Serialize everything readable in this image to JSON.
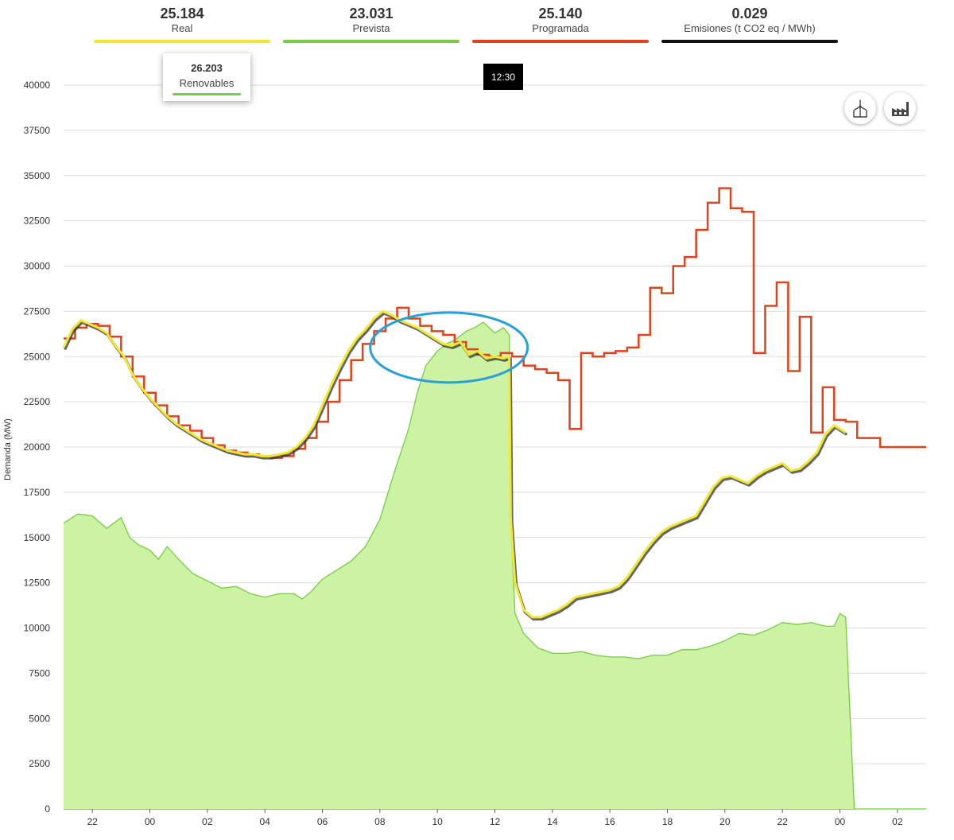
{
  "summary": {
    "real": {
      "value": "25.184",
      "label": "Real",
      "color": "#f2e832"
    },
    "prevista": {
      "value": "23.031",
      "label": "Prevista",
      "color": "#77cc44"
    },
    "programada": {
      "value": "25.140",
      "label": "Programada",
      "color": "#e0431b"
    },
    "emisiones": {
      "value": "0.029",
      "label": "Emisiones (t CO2 eq / MWh)",
      "color": "#111111"
    }
  },
  "tooltip": {
    "value": "26.203",
    "label": "Renovables",
    "color": "#77cc44"
  },
  "cursor": {
    "time_label": "12:30",
    "hour": 12.5
  },
  "icons": {
    "wind": "wind-turbine-icon",
    "factory": "factory-icon"
  },
  "chart_data": {
    "type": "line",
    "ylabel": "Demanda (MW)",
    "ylim": [
      0,
      40000
    ],
    "yticks": [
      0,
      2500,
      5000,
      7500,
      10000,
      12500,
      15000,
      17500,
      20000,
      22500,
      25000,
      27500,
      30000,
      32500,
      35000,
      37500,
      40000
    ],
    "xlim": [
      21,
      51
    ],
    "xticks": [
      {
        "label": "22",
        "hour": 22
      },
      {
        "label": "00",
        "hour": 24
      },
      {
        "label": "02",
        "hour": 26
      },
      {
        "label": "04",
        "hour": 28
      },
      {
        "label": "06",
        "hour": 30
      },
      {
        "label": "08",
        "hour": 32
      },
      {
        "label": "10",
        "hour": 34
      },
      {
        "label": "12",
        "hour": 36
      },
      {
        "label": "14",
        "hour": 38
      },
      {
        "label": "16",
        "hour": 40
      },
      {
        "label": "18",
        "hour": 42
      },
      {
        "label": "20",
        "hour": 44
      },
      {
        "label": "22",
        "hour": 46
      },
      {
        "label": "00",
        "hour": 48
      },
      {
        "label": "02",
        "hour": 50
      }
    ],
    "grid": true,
    "annotation": {
      "type": "ellipse",
      "center_hour": 34.4,
      "center_value": 25500,
      "color": "#2b9fd9"
    },
    "series": [
      {
        "name": "Renovables",
        "type": "area",
        "color": "#77cc44",
        "fill": "#ccf2a4",
        "x": [
          21,
          21.5,
          22,
          22.5,
          23,
          23.3,
          23.6,
          24,
          24.3,
          24.6,
          25,
          25.5,
          26,
          26.5,
          27,
          27.5,
          28,
          28.5,
          29,
          29.3,
          29.6,
          30,
          30.5,
          31,
          31.5,
          32,
          32.5,
          33,
          33.3,
          33.6,
          34,
          34.3,
          34.6,
          35,
          35.3,
          35.6,
          36,
          36.3,
          36.5,
          36.55,
          36.7,
          37,
          37.5,
          38,
          38.5,
          39,
          39.5,
          40,
          40.5,
          41,
          41.5,
          42,
          42.5,
          43,
          43.5,
          44,
          44.5,
          45,
          45.5,
          46,
          46.5,
          47,
          47.5,
          47.8,
          48,
          48.1,
          48.2,
          48.5,
          49,
          50,
          51
        ],
        "y": [
          15800,
          16300,
          16200,
          15500,
          16100,
          15000,
          14600,
          14300,
          13800,
          14500,
          13800,
          13000,
          12600,
          12200,
          12300,
          11900,
          11700,
          11900,
          11900,
          11600,
          12000,
          12700,
          13200,
          13700,
          14500,
          16000,
          18600,
          21000,
          23000,
          24500,
          25300,
          25700,
          25900,
          26400,
          26600,
          26900,
          26300,
          26600,
          26200,
          16000,
          10800,
          9700,
          8900,
          8600,
          8600,
          8700,
          8500,
          8400,
          8400,
          8300,
          8500,
          8500,
          8800,
          8800,
          9000,
          9300,
          9700,
          9600,
          9900,
          10300,
          10200,
          10300,
          10100,
          10100,
          10800,
          10700,
          10600,
          0,
          0,
          0,
          0
        ]
      },
      {
        "name": "Programada",
        "type": "step",
        "color": "#e0431b",
        "x": [
          21,
          21.4,
          21.8,
          22.2,
          22.6,
          23,
          23.4,
          23.8,
          24.2,
          24.6,
          25,
          25.4,
          25.8,
          26.2,
          26.6,
          27,
          27.4,
          27.8,
          28.2,
          28.6,
          29,
          29.4,
          29.8,
          30.2,
          30.6,
          31,
          31.4,
          31.8,
          32.2,
          32.6,
          33,
          33.4,
          33.8,
          34.2,
          34.6,
          35,
          35.4,
          35.8,
          36.2,
          36.6,
          37,
          37.4,
          37.8,
          38.2,
          38.6,
          39,
          39.4,
          39.8,
          40.2,
          40.6,
          41,
          41.4,
          41.8,
          42.2,
          42.6,
          43,
          43.4,
          43.8,
          44.2,
          44.6,
          45,
          45.4,
          45.8,
          46.2,
          46.6,
          47,
          47.4,
          47.8,
          48.2,
          48.6,
          49,
          49.4,
          49.8,
          50.2,
          50.6,
          51
        ],
        "y": [
          26000,
          26600,
          26800,
          26700,
          26100,
          25000,
          23900,
          23000,
          22300,
          21700,
          21200,
          20900,
          20500,
          20100,
          19800,
          19700,
          19600,
          19500,
          19400,
          19500,
          19900,
          20500,
          21400,
          22500,
          23700,
          24800,
          25700,
          26400,
          27100,
          27700,
          27100,
          26700,
          26400,
          26200,
          25800,
          25400,
          25100,
          25000,
          25200,
          25000,
          24500,
          24300,
          24100,
          23700,
          21000,
          25200,
          25000,
          25200,
          25300,
          25500,
          26200,
          28800,
          28500,
          30000,
          30500,
          32000,
          33500,
          34300,
          33200,
          33000,
          25200,
          27800,
          29100,
          24200,
          27200,
          20800,
          23300,
          21500,
          21400,
          20500,
          20500,
          20000,
          20000,
          20000,
          20000,
          20000
        ]
      },
      {
        "name": "Real",
        "type": "line",
        "color": "#f2e832",
        "x": [
          21,
          21.3,
          21.6,
          21.9,
          22.2,
          22.5,
          22.8,
          23.1,
          23.4,
          23.7,
          24,
          24.3,
          24.6,
          24.9,
          25.2,
          25.5,
          25.8,
          26.1,
          26.4,
          26.7,
          27,
          27.3,
          27.6,
          27.9,
          28.2,
          28.5,
          28.8,
          29.1,
          29.4,
          29.7,
          30,
          30.3,
          30.6,
          30.9,
          31.2,
          31.5,
          31.8,
          32.1,
          32.4,
          32.7,
          33,
          33.3,
          33.6,
          33.9,
          34.2,
          34.5,
          34.8,
          35.1,
          35.4,
          35.7,
          36,
          36.3,
          36.5,
          36.55,
          36.7,
          37,
          37.3,
          37.6,
          37.9,
          38.2,
          38.5,
          38.8,
          39.1,
          39.4,
          39.7,
          40,
          40.3,
          40.6,
          40.9,
          41.2,
          41.5,
          41.8,
          42.1,
          42.4,
          42.7,
          43,
          43.3,
          43.6,
          43.9,
          44.2,
          44.5,
          44.8,
          45.1,
          45.4,
          45.7,
          46,
          46.3,
          46.6,
          46.9,
          47.2,
          47.5,
          47.8,
          48,
          48.2
        ],
        "y": [
          25500,
          26500,
          27000,
          26800,
          26600,
          26300,
          25600,
          25000,
          24000,
          23300,
          22700,
          22200,
          21700,
          21300,
          21000,
          20700,
          20400,
          20200,
          20000,
          19800,
          19700,
          19600,
          19600,
          19500,
          19500,
          19600,
          19700,
          20000,
          20500,
          21200,
          22300,
          23400,
          24400,
          25300,
          26000,
          26500,
          27100,
          27500,
          27300,
          27000,
          26800,
          26600,
          26300,
          26000,
          25700,
          25600,
          25800,
          25100,
          25300,
          24900,
          25000,
          24900,
          25000,
          16000,
          12500,
          11000,
          10600,
          10600,
          10800,
          11000,
          11300,
          11700,
          11800,
          11900,
          12000,
          12100,
          12300,
          12800,
          13500,
          14200,
          14800,
          15300,
          15600,
          15800,
          16000,
          16200,
          17000,
          17800,
          18300,
          18400,
          18200,
          18000,
          18400,
          18700,
          18900,
          19100,
          18700,
          18800,
          19200,
          19700,
          20700,
          21200,
          21000,
          20800
        ]
      }
    ]
  }
}
